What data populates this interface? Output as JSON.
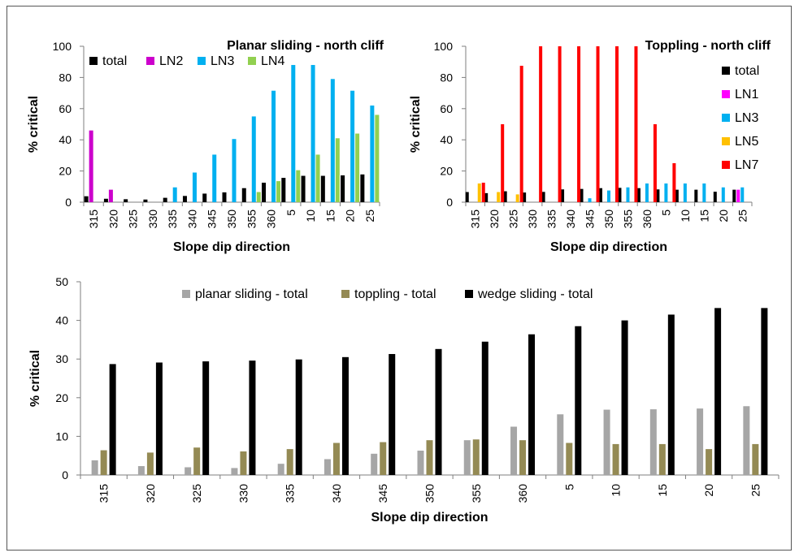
{
  "colors": {
    "total": "#000000",
    "LN1": "#ff00ff",
    "LN2": "#cc00cc",
    "LN3": "#00b0f0",
    "LN4": "#92d050",
    "LN5": "#ffc000",
    "LN7": "#ff0000",
    "planar": "#a6a6a6",
    "toppling": "#948a54",
    "wedge": "#000000",
    "axis": "#7f7f7f",
    "frame": "#555555"
  },
  "chart_data": [
    {
      "type": "bar",
      "title": "Planar sliding - north cliff",
      "xlabel": "Slope dip direction",
      "ylabel": "% critical",
      "ylim": [
        0,
        100
      ],
      "yticks": [
        "0",
        "20",
        "40",
        "60",
        "80",
        "100"
      ],
      "grid": false,
      "legend_position": "top",
      "categories": [
        "315",
        "320",
        "325",
        "330",
        "335",
        "340",
        "345",
        "350",
        "355",
        "360",
        "5",
        "10",
        "15",
        "20",
        "25"
      ],
      "series": [
        {
          "name": "total",
          "color_key": "total",
          "values": [
            3.8,
            2.2,
            1.9,
            1.7,
            2.8,
            4.0,
            5.5,
            6.3,
            9.0,
            12.5,
            15.6,
            16.9,
            16.9,
            17.2,
            17.8
          ]
        },
        {
          "name": "LN2",
          "color_key": "LN2",
          "values": [
            46,
            8,
            0,
            0,
            0,
            0,
            0,
            0,
            0,
            0,
            0,
            0,
            0,
            0,
            0
          ]
        },
        {
          "name": "LN3",
          "color_key": "LN3",
          "values": [
            0,
            0,
            0,
            0,
            9.5,
            19,
            30.5,
            40.5,
            55,
            71.5,
            88,
            88,
            79,
            71.5,
            62
          ]
        },
        {
          "name": "LN4",
          "color_key": "LN4",
          "values": [
            0,
            0,
            0,
            0,
            0,
            0,
            0,
            0,
            6.5,
            13.5,
            20.5,
            30.5,
            41,
            44,
            56
          ]
        }
      ]
    },
    {
      "type": "bar",
      "title": "Toppling - north cliff",
      "xlabel": "Slope dip direction",
      "ylabel": "% critical",
      "ylim": [
        0,
        100
      ],
      "yticks": [
        "0",
        "20",
        "40",
        "60",
        "80",
        "100"
      ],
      "grid": false,
      "legend_position": "right",
      "categories": [
        "315",
        "320",
        "325",
        "330",
        "335",
        "340",
        "345",
        "350",
        "355",
        "360",
        "5",
        "10",
        "15",
        "20",
        "25"
      ],
      "series": [
        {
          "name": "total",
          "color_key": "total",
          "values": [
            6.5,
            5.8,
            7.0,
            6.2,
            6.6,
            8.2,
            8.5,
            9.0,
            9.2,
            9.0,
            8.2,
            8.0,
            8.0,
            6.7,
            8.0
          ]
        },
        {
          "name": "LN1",
          "color_key": "LN1",
          "values": [
            0,
            0,
            0,
            0,
            0,
            0,
            0,
            0,
            0,
            0,
            0,
            0,
            0,
            0,
            8.0
          ]
        },
        {
          "name": "LN3",
          "color_key": "LN3",
          "values": [
            0,
            0,
            0,
            0,
            0,
            0,
            2.5,
            7.5,
            9.5,
            12,
            12,
            12,
            12,
            9.5,
            9.5
          ]
        },
        {
          "name": "LN5",
          "color_key": "LN5",
          "values": [
            12,
            6.5,
            5.0,
            0,
            0,
            0,
            0,
            0,
            0,
            0,
            0,
            0,
            0,
            0,
            0
          ]
        },
        {
          "name": "LN7",
          "color_key": "LN7",
          "values": [
            12.5,
            50,
            87.5,
            100,
            100,
            100,
            100,
            100,
            100,
            50,
            25,
            0,
            0,
            0,
            0
          ]
        }
      ]
    },
    {
      "type": "bar",
      "title": "",
      "xlabel": "Slope dip direction",
      "ylabel": "% critical",
      "ylim": [
        0,
        50
      ],
      "yticks": [
        "0",
        "10",
        "20",
        "30",
        "40",
        "50"
      ],
      "grid": false,
      "legend_position": "top",
      "categories": [
        "315",
        "320",
        "325",
        "330",
        "335",
        "340",
        "345",
        "350",
        "355",
        "360",
        "5",
        "10",
        "15",
        "20",
        "25"
      ],
      "series": [
        {
          "name": "planar sliding - total",
          "color_key": "planar",
          "values": [
            3.8,
            2.3,
            2.0,
            1.8,
            2.9,
            4.1,
            5.5,
            6.3,
            9.0,
            12.5,
            15.7,
            16.9,
            17.0,
            17.2,
            17.8
          ]
        },
        {
          "name": "toppling - total",
          "color_key": "toppling",
          "values": [
            6.4,
            5.8,
            7.1,
            6.1,
            6.7,
            8.3,
            8.5,
            9.0,
            9.2,
            9.0,
            8.3,
            8.0,
            8.0,
            6.7,
            8.0
          ]
        },
        {
          "name": "wedge sliding - total",
          "color_key": "wedge",
          "values": [
            28.7,
            29.1,
            29.4,
            29.6,
            29.9,
            30.5,
            31.3,
            32.6,
            34.5,
            36.4,
            38.5,
            40.0,
            41.5,
            43.2,
            43.2
          ]
        }
      ]
    }
  ]
}
